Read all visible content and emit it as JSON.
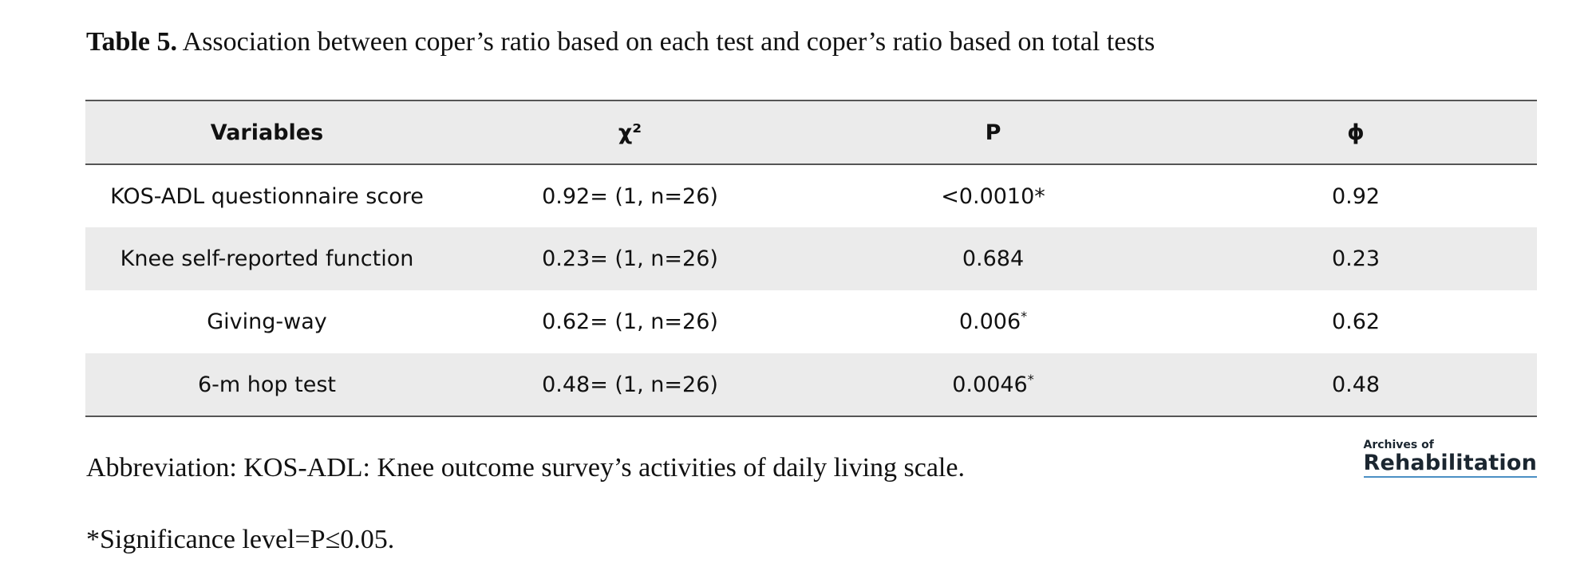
{
  "caption": {
    "label": "Table 5.",
    "text": " Association between coper’s ratio based on each test and coper’s ratio based on total tests"
  },
  "table": {
    "headers": [
      "Variables",
      "χ²",
      "P",
      "ϕ"
    ],
    "rows": [
      {
        "variable": "KOS-ADL questionnaire score",
        "chi2": "0.92= (1, n=26)",
        "p": "<0.0010*",
        "p_sup": "",
        "phi": "0.92"
      },
      {
        "variable": "Knee self-reported function",
        "chi2": "0.23= (1, n=26)",
        "p": "0.684",
        "p_sup": "",
        "phi": "0.23"
      },
      {
        "variable": "Giving-way",
        "chi2": "0.62= (1, n=26)",
        "p": "0.006",
        "p_sup": "*",
        "phi": "0.62"
      },
      {
        "variable": "6-m hop test",
        "chi2": "0.48= (1, n=26)",
        "p": "0.0046",
        "p_sup": "*",
        "phi": "0.48"
      }
    ]
  },
  "footnotes": {
    "abbreviation": "Abbreviation: KOS-ADL: Knee outcome survey’s activities of daily living scale.",
    "significance": "*Significance level=P≤0.05."
  },
  "logo": {
    "top": "Archives of",
    "main": "Rehabilitation"
  }
}
